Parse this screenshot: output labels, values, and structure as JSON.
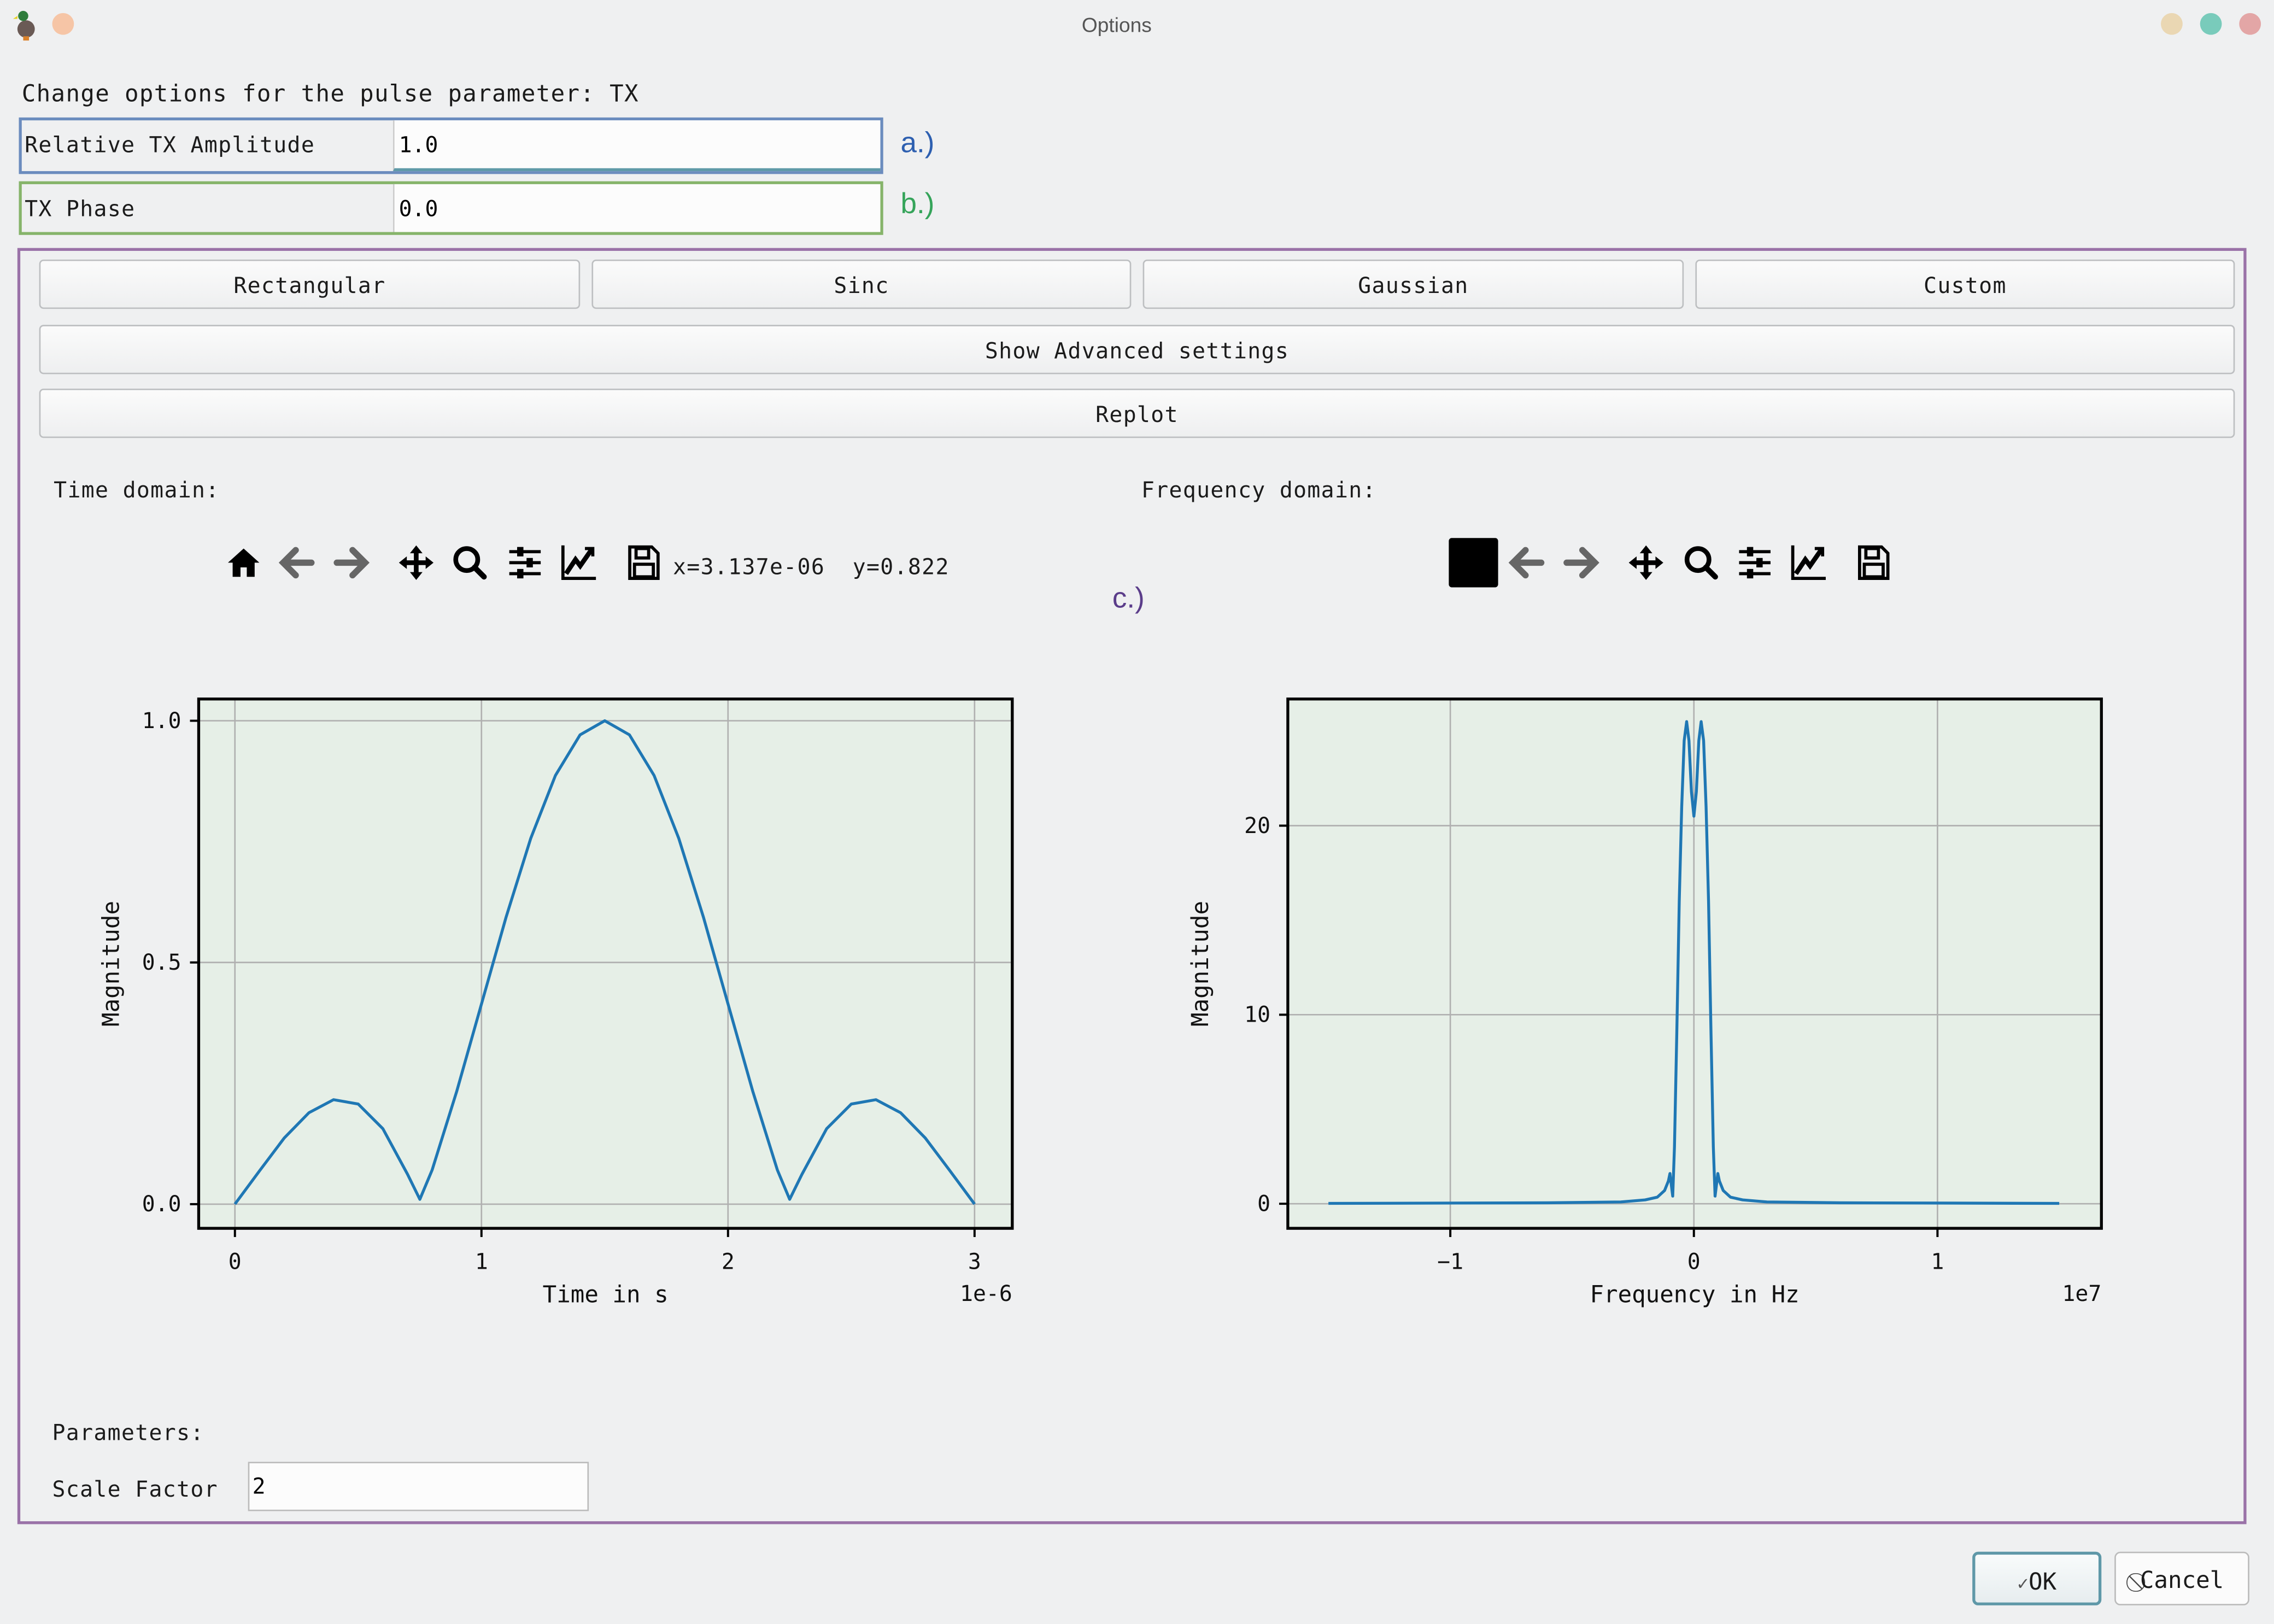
{
  "window": {
    "title": "Options",
    "app_icon": "duck-icon",
    "controls": {
      "minimize_color": "#ead7b3",
      "maximize_color": "#79cbbb",
      "close_color": "#e3a6a6",
      "menu_dot_color": "#f6c5a6"
    }
  },
  "header": {
    "label": "Change options for the pulse parameter: TX"
  },
  "fields": {
    "amplitude": {
      "label": "Relative TX Amplitude",
      "value": "1.0",
      "annotation": "a.)",
      "border_color": "#6b8cbe",
      "annotation_color": "#2d5fb0"
    },
    "phase": {
      "label": "TX Phase",
      "value": "0.0",
      "annotation": "b.)",
      "border_color": "#86b46a",
      "annotation_color": "#35a45a"
    }
  },
  "group": {
    "annotation": "c.)",
    "border_color": "#9a72a8",
    "shape_buttons": [
      "Rectangular",
      "Sinc",
      "Gaussian",
      "Custom"
    ],
    "advanced_button": "Show Advanced settings",
    "replot_button": "Replot",
    "time_label": "Time domain:",
    "freq_label": "Frequency domain:",
    "time_toolbar": {
      "icons": [
        "home-icon",
        "back-icon",
        "forward-icon",
        "pan-icon",
        "zoom-icon",
        "configure-subplots-icon",
        "edit-axis-icon",
        "save-icon"
      ],
      "coords": "x=3.137e-06  y=0.822"
    },
    "freq_toolbar": {
      "icons": [
        "home-icon-blacked",
        "back-icon",
        "forward-icon",
        "pan-icon",
        "zoom-icon",
        "configure-subplots-icon",
        "edit-axis-icon",
        "save-icon"
      ]
    },
    "parameters_label": "Parameters:",
    "scale_factor": {
      "label": "Scale Factor",
      "value": "2"
    }
  },
  "chart_data": [
    {
      "type": "line",
      "xlabel": "Time in s",
      "ylabel": "Magnitude",
      "x_offset_label": "1e-6",
      "xlim": [
        -0.147,
        3.153
      ],
      "ylim": [
        -0.05,
        1.045
      ],
      "xticks": [
        0,
        1,
        2,
        3
      ],
      "xtick_labels": [
        "0",
        "1",
        "2",
        "3"
      ],
      "yticks": [
        0,
        0.5,
        1.0
      ],
      "ytick_labels": [
        "0.0",
        "0.5",
        "1.0"
      ],
      "grid": true,
      "background": "#e6efe7",
      "line_color": "#1f77b4",
      "series": [
        {
          "x": [
            0,
            0.1,
            0.2,
            0.3,
            0.4,
            0.5,
            0.6,
            0.7,
            0.75,
            0.8,
            0.9,
            1.0,
            1.1,
            1.2,
            1.3,
            1.4,
            1.5,
            1.6,
            1.7,
            1.8,
            1.9,
            2.0,
            2.1,
            2.2,
            2.25,
            2.3,
            2.4,
            2.5,
            2.6,
            2.7,
            2.8,
            2.9,
            3.0
          ],
          "y": [
            0,
            0.069,
            0.137,
            0.189,
            0.216,
            0.207,
            0.156,
            0.062,
            0.01,
            0.071,
            0.234,
            0.414,
            0.594,
            0.757,
            0.887,
            0.971,
            1.0,
            0.971,
            0.887,
            0.757,
            0.594,
            0.414,
            0.234,
            0.071,
            0.01,
            0.062,
            0.156,
            0.207,
            0.216,
            0.189,
            0.137,
            0.069,
            0
          ]
        }
      ]
    },
    {
      "type": "line",
      "xlabel": "Frequency in Hz",
      "ylabel": "Magnitude",
      "x_offset_label": "1e7",
      "xlim": [
        -1.667,
        1.673
      ],
      "ylim": [
        -1.3,
        26.7
      ],
      "xticks": [
        -1,
        0,
        1
      ],
      "xtick_labels": [
        "−1",
        "0",
        "1"
      ],
      "yticks": [
        0,
        10,
        20
      ],
      "ytick_labels": [
        "0",
        "10",
        "20"
      ],
      "grid": true,
      "background": "#e6efe7",
      "line_color": "#1f77b4",
      "series": [
        {
          "x": [
            -1.5,
            -0.6,
            -0.3,
            -0.2,
            -0.15,
            -0.12,
            -0.105,
            -0.098,
            -0.09,
            -0.087,
            -0.08,
            -0.07,
            -0.06,
            -0.05,
            -0.04,
            -0.03,
            -0.02,
            -0.01,
            0,
            0.01,
            0.02,
            0.03,
            0.04,
            0.05,
            0.06,
            0.07,
            0.08,
            0.087,
            0.09,
            0.098,
            0.105,
            0.12,
            0.15,
            0.2,
            0.3,
            0.6,
            1.5
          ],
          "y": [
            0.02,
            0.05,
            0.1,
            0.2,
            0.35,
            0.7,
            1.2,
            1.6,
            0.7,
            0.4,
            3,
            9,
            16,
            21,
            24.5,
            25.5,
            24.5,
            21.8,
            20.5,
            21.8,
            24.5,
            25.5,
            24.5,
            21,
            16,
            9,
            3,
            0.4,
            0.7,
            1.6,
            1.2,
            0.7,
            0.35,
            0.2,
            0.1,
            0.05,
            0.02
          ]
        }
      ]
    }
  ],
  "dialog": {
    "ok": "OK",
    "cancel": "Cancel",
    "ok_icon": "check-icon",
    "cancel_icon": "cancel-icon"
  }
}
